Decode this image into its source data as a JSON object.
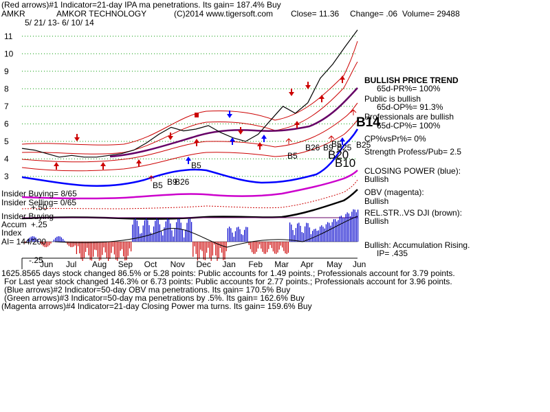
{
  "header": {
    "line1": "(Red arrows)#1 Indicator=21-day IPA ma penetrations. Its gain= 187.4% Buy",
    "ticker": "AMKR",
    "company": "AMKOR TECHNOLOGY",
    "copyright": "(C)2014 www.tigersoft.com",
    "close": "Close=  11.36",
    "change": "Change= .06",
    "volume": "Volume= 29488",
    "range": "5/ 21/ 13- 6/ 10/ 14"
  },
  "right_panel": {
    "bullish_trend": "BULLISH PRICE TREND",
    "pr": "65d-PR%= 100%",
    "public": "Public is bullish",
    "op": "65d-OP%= 91.3%",
    "prof": "Professionals are bullish",
    "cp": "65d-CP%= 100%",
    "cpvspr": "CP%vsPr%=  0%",
    "strength": "Strength Profess/Pub= 2.5",
    "closing_power": "CLOSING POWER (blue):",
    "cp_bull": "Bullish",
    "obv": "OBV (magenta):",
    "obv_bull": "Bullish",
    "relstr": "REL.STR..VS DJI (brown):",
    "relstr_bull": "Bullish",
    "accum": "Bullish: Accumulation Rising.",
    "ip": "IP=  .435"
  },
  "left_panel": {
    "insider_buying": "Insider Buying= 8/65",
    "insider_selling": "Insider Selling= 0/65",
    "insider_buying2": "Insider Buying",
    "accum_label": "Accum",
    "index_label": "Index",
    "ai": "AI= 144/200",
    "p50": "+.50",
    "p25": "+.25",
    "m25": "-.25"
  },
  "signals": {
    "b14": "B14",
    "b25a": "B25",
    "b25b": "B25",
    "b26a": "B26",
    "b26b": "B26",
    "b5a": "B5",
    "b5b": "B5",
    "b5c": "B5",
    "b5d": "B5",
    "b9a": "B9",
    "b9b": "B9",
    "b10": "B10",
    "b20": "B20"
  },
  "footer": {
    "line1": "1625.8565 days stock changed  86.5% or  5.28 points:  Public accounts for  1.49 points.;  Professionals account for  3.79 points.",
    "line2": "For Last year stock changed  146.3% or  6.73 points:  Public accounts for  2.77 points.;  Professionals account for  3.96 points.",
    "line3": "(Blue arrows)#2 Indicator=50-day OBV ma penetrations. Its gain= 170.5% Buy",
    "line4": "(Green arrows)#3 Indicator=50-day ma penetrations by .5%. Its gain= 162.6% Buy",
    "line5": "(Magenta arrows)#4 Indicator=21-day Closing Power ma turns. Its gain= 159.6% Buy"
  },
  "colors": {
    "price": "#000000",
    "bands": "#cc0000",
    "ma": "#660066",
    "closing_power": "#0000ff",
    "obv": "#cc00cc",
    "relstr": "#7a3b00",
    "accum_pos": "#0000cc",
    "accum_neg": "#cc0000",
    "grid": "#009900"
  },
  "chart_data": {
    "type": "line",
    "x_ticks": [
      "Jun",
      "Jul",
      "Aug",
      "Sep",
      "Oct",
      "Nov",
      "Dec",
      "Jan",
      "Feb",
      "Mar",
      "Apr",
      "May",
      "Jun"
    ],
    "y_ticks": [
      3,
      4,
      5,
      6,
      7,
      8,
      9,
      10,
      11
    ],
    "ylim": [
      2.8,
      11.5
    ],
    "series": [
      {
        "values": [
          4.6,
          4.5,
          4.3,
          4.1,
          4.2,
          4.1,
          4.1,
          4.2,
          4.3,
          4.5,
          4.9,
          5.4,
          5.8,
          5.6,
          5.7,
          5.9,
          5.5,
          5.2,
          5.0,
          5.4,
          6.2,
          7.0,
          6.6,
          7.2,
          8.6,
          9.4,
          10.4,
          11.36
        ]
      }
    ],
    "grid": true
  }
}
